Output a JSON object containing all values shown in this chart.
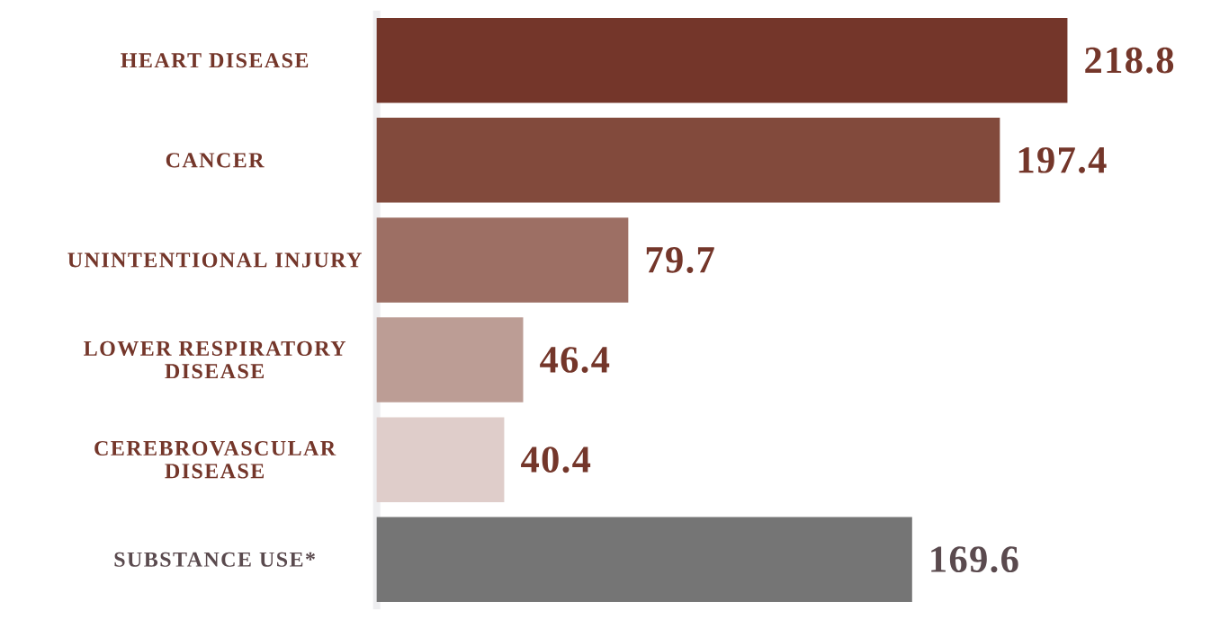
{
  "chart_data": {
    "type": "bar",
    "orientation": "horizontal",
    "data_labels": true,
    "categories": [
      "HEART DISEASE",
      "CANCER",
      "UNINTENTIONAL INJURY",
      "LOWER RESPIRATORY DISEASE",
      "CEREBROVASCULAR DISEASE",
      "SUBSTANCE USE*"
    ],
    "values": [
      218.8,
      197.4,
      79.7,
      46.4,
      40.4,
      169.6
    ],
    "colors": [
      "#74362a",
      "#824a3c",
      "#9d6f64",
      "#bc9d95",
      "#dfcdca",
      "#757575"
    ]
  }
}
